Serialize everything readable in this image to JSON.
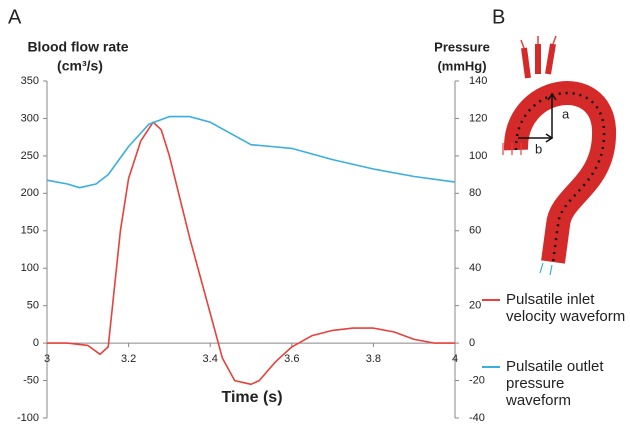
{
  "panel_labels": [
    "A",
    "B"
  ],
  "illustration_labels": [
    "a",
    "b"
  ],
  "chart_data": {
    "type": "line",
    "ylabel": [
      "Blood flow rate",
      "(cm³/s)"
    ],
    "y2label": [
      "Pressure",
      "(mmHg)"
    ],
    "xlabel": "Time (s)",
    "xlim": [
      3,
      4
    ],
    "xticks": [
      3,
      3.2,
      3.4,
      3.6,
      3.8,
      4
    ],
    "ylim": [
      -100,
      350
    ],
    "yticks": [
      -100,
      -50,
      0,
      50,
      100,
      150,
      200,
      250,
      300,
      350
    ],
    "y2lim": [
      -40,
      140
    ],
    "y2ticks": [
      -40,
      -20,
      0,
      20,
      40,
      60,
      80,
      100,
      120,
      140
    ],
    "series": [
      {
        "name": "Pulsatile inlet velocity waveform",
        "color": "#e8403a",
        "x": [
          3.0,
          3.05,
          3.1,
          3.13,
          3.15,
          3.18,
          3.2,
          3.23,
          3.26,
          3.28,
          3.3,
          3.35,
          3.4,
          3.43,
          3.46,
          3.5,
          3.52,
          3.56,
          3.6,
          3.65,
          3.7,
          3.75,
          3.8,
          3.85,
          3.9,
          3.95,
          4.0
        ],
        "values": [
          0,
          0,
          -3,
          -15,
          -5,
          150,
          220,
          270,
          295,
          285,
          250,
          140,
          40,
          -20,
          -50,
          -55,
          -50,
          -25,
          -5,
          10,
          17,
          20,
          20,
          15,
          5,
          0,
          0
        ]
      },
      {
        "name": "Pulsatile outlet pressure waveform",
        "color": "#3aaee0",
        "axis": "y2",
        "x": [
          3.0,
          3.05,
          3.08,
          3.12,
          3.15,
          3.2,
          3.25,
          3.3,
          3.35,
          3.4,
          3.45,
          3.5,
          3.55,
          3.6,
          3.7,
          3.8,
          3.9,
          4.0
        ],
        "values": [
          87,
          85,
          83,
          85,
          90,
          105,
          117,
          121,
          121,
          118,
          112,
          106,
          105,
          104,
          98,
          93,
          89,
          86
        ]
      }
    ]
  }
}
